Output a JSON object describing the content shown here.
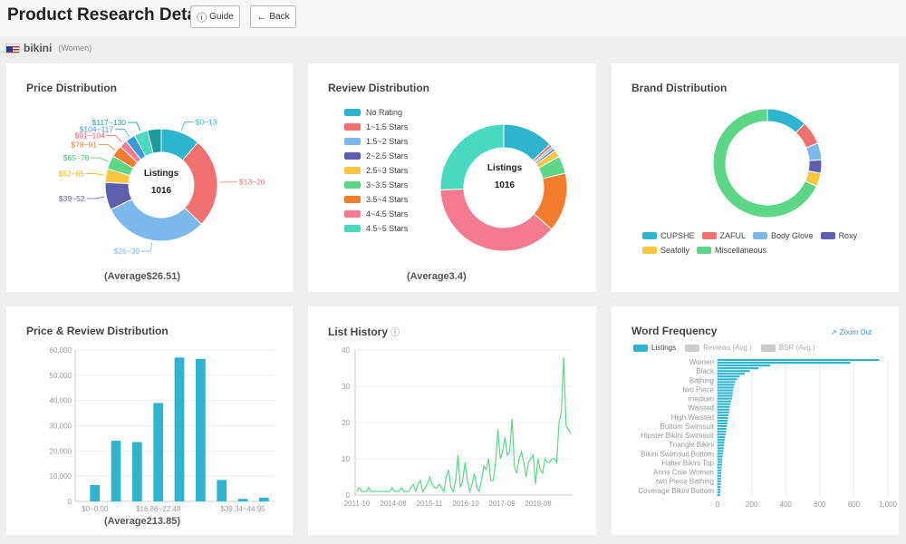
{
  "header": {
    "title": "Product Research Detail",
    "guide_label": "Guide",
    "back_label": "Back",
    "keyword": "bikini",
    "category": "(Women)"
  },
  "price_distribution": {
    "title": "Price Distribution",
    "center_label": "Listings",
    "center_value": "1016",
    "average": "(Average$26.51)",
    "chart_data": {
      "type": "pie",
      "labels": [
        "$0~13",
        "$13~26",
        "$26~39",
        "$39~52",
        "$52~65",
        "$65~78",
        "$78~91",
        "$91~104",
        "$104~117",
        "$117~130",
        ""
      ],
      "values": [
        100,
        230,
        270,
        70,
        35,
        35,
        30,
        20,
        25,
        35,
        35
      ],
      "colors": [
        "#2fb4d0",
        "#f07170",
        "#7cb8ec",
        "#5b5fae",
        "#f9c840",
        "#5ed688",
        "#f37c2d",
        "#f47a9c",
        "#3b99d9",
        "#48d9c0",
        "#1d9a9a"
      ],
      "label_colors": [
        "#2fb4d0",
        "#f07170",
        "#7cb8ec",
        "#5b5fae",
        "#f0b400",
        "#45c070",
        "#f37c2d",
        "#f06070",
        "#3b99d9",
        "#1aa0a0",
        ""
      ]
    }
  },
  "review_distribution": {
    "title": "Review Distribution",
    "center_label": "Listings",
    "center_value": "1016",
    "average": "(Average3.4)",
    "chart_data": {
      "type": "pie",
      "labels": [
        "No Rating",
        "1~1.5 Stars",
        "1.5~2 Stars",
        "2~2.5 Stars",
        "2.5~3 Stars",
        "3~3.5 Stars",
        "3.5~4 Stars",
        "4~4.5 Stars",
        "4.5~5 Stars"
      ],
      "values": [
        130,
        8,
        6,
        6,
        18,
        45,
        150,
        380,
        255
      ],
      "colors": [
        "#2fb4d0",
        "#f07170",
        "#7cb8ec",
        "#5b5fae",
        "#f9c840",
        "#5ed688",
        "#f37c2d",
        "#f47a90",
        "#48d9c0"
      ]
    }
  },
  "brand_distribution": {
    "title": "Brand Distribution",
    "chart_data": {
      "type": "pie",
      "labels": [
        "CUPSHE",
        "ZAFUL",
        "Body Glove",
        "Roxy",
        "Seafolly",
        "Miscellaneous"
      ],
      "values": [
        12,
        7,
        5,
        4,
        4,
        68
      ],
      "colors": [
        "#2fb4d0",
        "#f07170",
        "#7cb8ec",
        "#5b5fae",
        "#f9c840",
        "#5ed688"
      ]
    }
  },
  "price_review": {
    "title": "Price & Review Distribution",
    "average": "(Average213.85)",
    "chart_data": {
      "type": "bar",
      "categories": [
        "$0~0.00",
        "",
        "",
        "$16.86~22.48",
        "",
        "",
        "",
        "$39.34~44.95",
        ""
      ],
      "values": [
        6500,
        24000,
        23500,
        39000,
        57000,
        56500,
        8500,
        1000,
        1500
      ],
      "ylim": [
        0,
        60000
      ],
      "yticks": [
        "0",
        "10,000",
        "20,000",
        "30,000",
        "40,000",
        "50,000",
        "60,000"
      ],
      "ytick_values": [
        0,
        10000,
        20000,
        30000,
        40000,
        50000,
        60000
      ],
      "color": "#2fb4d0"
    }
  },
  "list_history": {
    "title": "List History",
    "chart_data": {
      "type": "line",
      "xticks": [
        "2011-10",
        "2014-08",
        "2015-11",
        "2016-10",
        "2017-09",
        "2018-08"
      ],
      "yticks": [
        "0",
        "10",
        "20",
        "30",
        "40"
      ],
      "ytick_values": [
        0,
        10,
        20,
        30,
        40
      ],
      "ylim": [
        0,
        40
      ],
      "values": [
        1,
        2,
        1,
        1,
        1,
        2,
        1,
        1,
        1,
        1,
        1,
        1,
        1,
        1,
        1,
        2,
        1,
        1,
        1,
        2,
        1,
        1,
        1,
        2,
        3,
        1,
        3,
        4,
        1,
        2,
        3,
        5,
        3,
        2,
        2,
        3,
        2,
        1,
        5,
        7,
        2,
        1,
        4,
        11,
        2,
        4,
        9,
        4,
        1,
        3,
        6,
        2,
        1,
        4,
        8,
        7,
        10,
        4,
        4,
        9,
        18,
        10,
        12,
        16,
        11,
        12,
        21,
        8,
        6,
        10,
        12,
        9,
        5,
        9,
        10,
        11,
        3,
        10,
        7,
        6,
        10,
        9,
        9,
        10,
        10,
        9,
        20,
        23,
        38,
        19,
        18,
        17
      ],
      "color": "#5ed688"
    }
  },
  "word_frequency": {
    "title": "Word Frequency",
    "zoom_label": "Zoom Out",
    "legend": [
      "Listings",
      "Reviews (Avg.)",
      "BSR (Avg.)"
    ],
    "legend_colors": [
      "#2fb4d0",
      "#cccccc",
      "#cccccc"
    ],
    "chart_data": {
      "type": "bar",
      "orientation": "horizontal",
      "labels": [
        "Women",
        "Black",
        "Bathing",
        "two Piece",
        "medium",
        "Waisted",
        "High Waisted",
        "Bottom Swimsuit",
        "Hipster Bikini Swimsuit",
        "Triangle Bikini",
        "Bikini Swimsuit Bottom",
        "Halter Bikini Top",
        "Anne Cole Women",
        "two Piece Bathing",
        "Coverage Bikini Bottom"
      ],
      "values": [
        950,
        300,
        170,
        110,
        100,
        80,
        70,
        60,
        55,
        45,
        40,
        35,
        30,
        25,
        20
      ],
      "bar_values": [
        950,
        780,
        310,
        240,
        190,
        160,
        130,
        115,
        105,
        100,
        95,
        92,
        90,
        88,
        85,
        80,
        75,
        72,
        70,
        68,
        65,
        62,
        60,
        58,
        55,
        52,
        50,
        48,
        45,
        42,
        40,
        38,
        36,
        34,
        32,
        30,
        28,
        27,
        26,
        25,
        24,
        23,
        22,
        21,
        20,
        19,
        18,
        17,
        16,
        15
      ],
      "xticks": [
        "0",
        "200",
        "400",
        "600",
        "800",
        "1,000"
      ],
      "xtick_values": [
        0,
        200,
        400,
        600,
        800,
        1000
      ],
      "xlim": [
        0,
        1000
      ],
      "color": "#2fb4d0"
    }
  }
}
